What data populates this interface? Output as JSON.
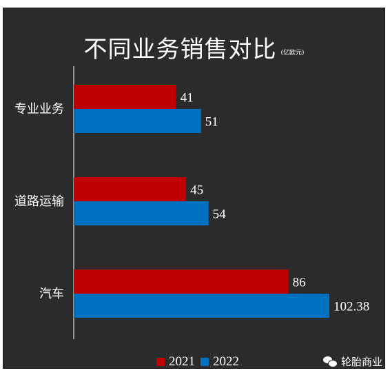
{
  "chart_data": {
    "type": "bar",
    "orientation": "horizontal",
    "title": "不同业务销售对比",
    "unit": "(亿欧元)",
    "categories": [
      "专业业务",
      "道路运输",
      "汽车"
    ],
    "series": [
      {
        "name": "2021",
        "values": [
          41,
          45,
          86
        ],
        "labels": [
          "41",
          "45",
          "86"
        ],
        "color": "#c00000"
      },
      {
        "name": "2022",
        "values": [
          51,
          54,
          102.38
        ],
        "labels": [
          "51",
          "54",
          "102.38"
        ],
        "color": "#0070c0"
      }
    ],
    "xlim": [
      0,
      120
    ],
    "grid": false,
    "legend_position": "bottom"
  },
  "colors": {
    "background": "#2b2b2b",
    "text": "#ffffff",
    "axis": "#ffffff"
  },
  "watermark": {
    "icon": "wechat-icon",
    "text": "轮胎商业"
  }
}
